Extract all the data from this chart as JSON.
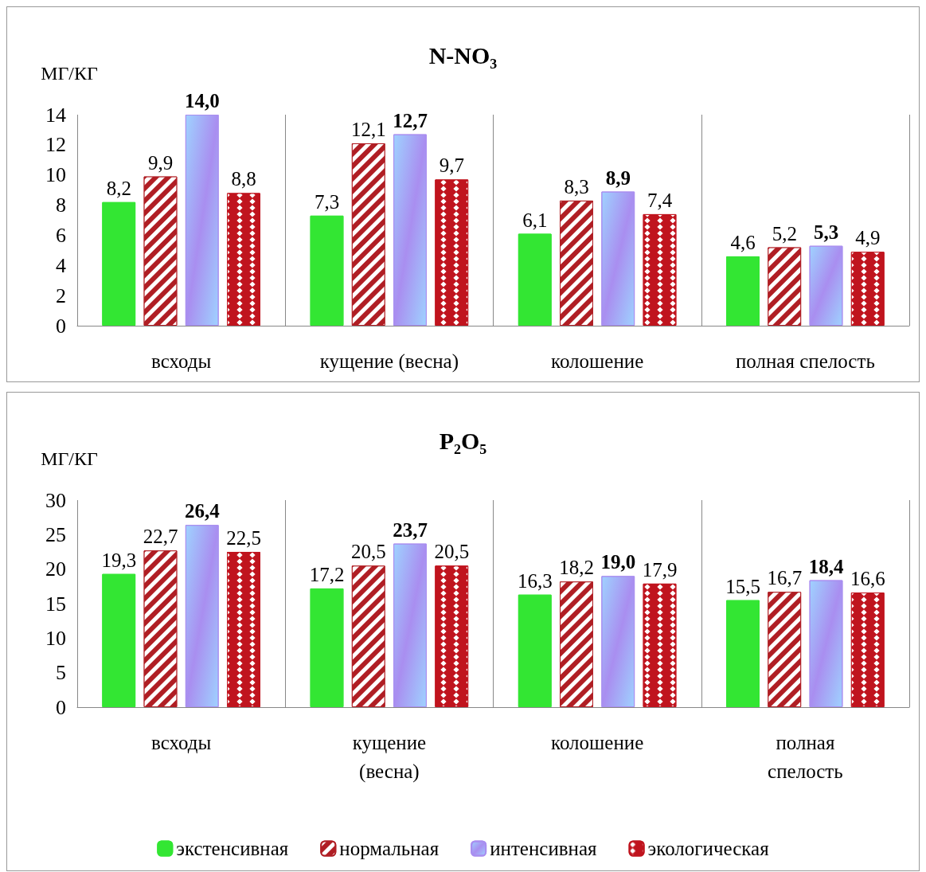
{
  "chart_data": [
    {
      "type": "bar",
      "title": "N-NO₃",
      "ylabel": "МГ/КГ",
      "categories": [
        "всходы",
        "кущение (весна)",
        "колошение",
        "полная спелость"
      ],
      "series": [
        {
          "color": "#33e633",
          "values": [
            8.2,
            7.3,
            6.1,
            4.6
          ],
          "value_labels": [
            "8,2",
            "7,3",
            "6,1",
            "4,6"
          ]
        },
        {
          "color": "#b01e24",
          "values": [
            9.9,
            12.1,
            8.3,
            5.2
          ],
          "value_labels": [
            "9,9",
            "12,1",
            "8,3",
            "5,2"
          ]
        },
        {
          "color": "#a98ef0",
          "values": [
            14.0,
            12.7,
            8.9,
            5.3
          ],
          "value_labels": [
            "14,0",
            "12,7",
            "8,9",
            "5,3"
          ]
        },
        {
          "color": "#c0141e",
          "values": [
            8.8,
            9.7,
            7.4,
            4.9
          ],
          "value_labels": [
            "8,8",
            "9,7",
            "7,4",
            "4,9"
          ]
        }
      ],
      "ylim": [
        0,
        14
      ],
      "yticks": [
        0,
        2,
        4,
        6,
        8,
        10,
        12,
        14
      ],
      "grid": "x",
      "legend": false
    },
    {
      "type": "bar",
      "title": "P₂O₅",
      "ylabel": "МГ/КГ",
      "categories": [
        "всходы",
        "кущение (весна)",
        "колошение",
        "полная спелость"
      ],
      "series": [
        {
          "name": "экстенсивная",
          "color": "#33e633",
          "values": [
            19.3,
            17.2,
            16.3,
            15.5
          ],
          "value_labels": [
            "19,3",
            "17,2",
            "16,3",
            "15,5"
          ]
        },
        {
          "name": "нормальная",
          "color": "#b01e24",
          "values": [
            22.7,
            20.5,
            18.2,
            16.7
          ],
          "value_labels": [
            "22,7",
            "20,5",
            "18,2",
            "16,7"
          ]
        },
        {
          "name": "интенсивная",
          "color": "#a98ef0",
          "values": [
            26.4,
            23.7,
            19.0,
            18.4
          ],
          "value_labels": [
            "26,4",
            "23,7",
            "19,0",
            "18,4"
          ]
        },
        {
          "name": "экологическая",
          "color": "#c0141e",
          "values": [
            22.5,
            20.5,
            17.9,
            16.6
          ],
          "value_labels": [
            "22,5",
            "20,5",
            "17,9",
            "16,6"
          ]
        }
      ],
      "ylim": [
        0,
        30
      ],
      "yticks": [
        0,
        5,
        10,
        15,
        20,
        25,
        30
      ],
      "grid": "x",
      "legend": "bottom"
    }
  ]
}
